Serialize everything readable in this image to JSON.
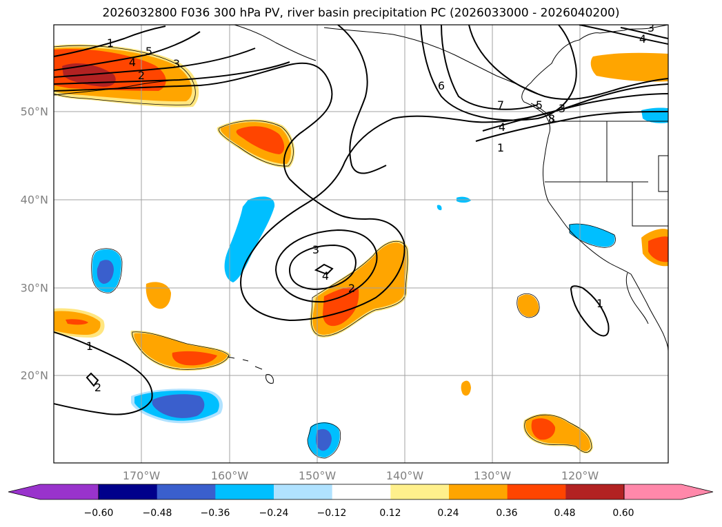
{
  "title": "2026032800 F036 300 hPa PV, river basin precipitation PC (2026033000 - 2026040200)",
  "map": {
    "lat_labels": [
      "50°N",
      "40°N",
      "30°N",
      "20°N"
    ],
    "lon_labels": [
      "170°W",
      "160°W",
      "150°W",
      "140°W",
      "130°W",
      "120°W"
    ],
    "contour_labels": [
      "1",
      "5",
      "4",
      "2",
      "3",
      "6",
      "7",
      "5",
      "3",
      "4",
      "1",
      "8",
      "3",
      "4",
      "3",
      "4",
      "2",
      "1",
      "1",
      "2"
    ]
  },
  "colorbar": {
    "ticks": [
      "−0.60",
      "−0.48",
      "−0.36",
      "−0.24",
      "−0.12",
      "0.12",
      "0.24",
      "0.36",
      "0.48",
      "0.60"
    ],
    "colors": {
      "under": "#9933cc",
      "bins": [
        "#00008b",
        "#3a5fcd",
        "#00bfff",
        "#b0e2ff",
        "#ffffff",
        "#fff08c",
        "#ffa500",
        "#ff4500",
        "#b22222",
        "#ff88aa"
      ]
    }
  },
  "colors": {
    "pos_light": "#ffe680",
    "pos_mid": "#ffa500",
    "pos_strong": "#ff4500",
    "pos_max": "#b22222",
    "neg_light": "#00bfff",
    "neg_strong": "#3a5fcd"
  }
}
